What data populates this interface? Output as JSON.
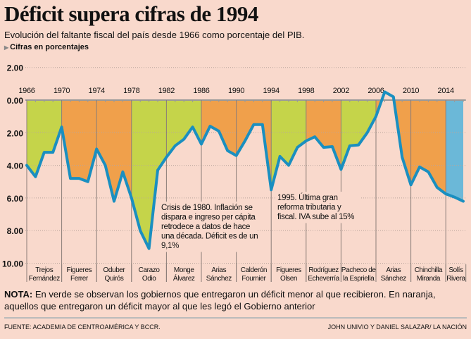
{
  "title": "Déficit supera cifras de 1994",
  "subtitle": "Evolución del faltante fiscal del país desde 1966 como porcentaje del PIB.",
  "units_label": "Cifras en porcentajes",
  "note_label": "NOTA:",
  "note_text": " En verde se observan los gobiernos que entregaron un déficit menor al que recibieron. En naranja, aquellos que entregaron un déficit mayor al que les legó el Gobierno anterior",
  "source": "FUENTE: ACADEMIA DE CENTROAMÉRICA Y BCCR.",
  "credit": "JOHN UNIVIO Y DANIEL SALAZAR/ LA NACIÓN",
  "colors": {
    "background": "#f9d9cc",
    "line": "#1a8fc0",
    "green": "#c5d44a",
    "orange": "#f0a04b",
    "blue": "#6bb8d8"
  },
  "chart_data": {
    "type": "line",
    "title": "Déficit supera cifras de 1994",
    "ylabel": "Cifras en porcentajes",
    "y_inverted": true,
    "ylim": [
      -2,
      10
    ],
    "y_ticks": [
      {
        "v": -2,
        "label": "2.00"
      },
      {
        "v": 0,
        "label": "0.00"
      },
      {
        "v": 2,
        "label": "2.00"
      },
      {
        "v": 4,
        "label": "4.00"
      },
      {
        "v": 6,
        "label": "6.00"
      },
      {
        "v": 8,
        "label": "8.00"
      },
      {
        "v": 10,
        "label": "10.00"
      }
    ],
    "x_ticks": [
      "1966",
      "1970",
      "1974",
      "1978",
      "1982",
      "1986",
      "1990",
      "1994",
      "1998",
      "2002",
      "2006",
      "2010",
      "2014"
    ],
    "grid": true,
    "x": [
      1966,
      1967,
      1968,
      1969,
      1970,
      1971,
      1972,
      1973,
      1974,
      1975,
      1976,
      1977,
      1978,
      1979,
      1980,
      1981,
      1982,
      1983,
      1984,
      1985,
      1986,
      1987,
      1988,
      1989,
      1990,
      1991,
      1992,
      1993,
      1994,
      1995,
      1996,
      1997,
      1998,
      1999,
      2000,
      2001,
      2002,
      2003,
      2004,
      2005,
      2006,
      2007,
      2008,
      2009,
      2010,
      2011,
      2012,
      2013,
      2014,
      2015,
      2016
    ],
    "values": [
      4.0,
      4.7,
      3.2,
      3.2,
      1.65,
      4.8,
      4.8,
      5.0,
      3.0,
      4.0,
      6.2,
      4.4,
      6.0,
      8.0,
      9.1,
      4.3,
      3.5,
      2.8,
      2.4,
      1.65,
      2.7,
      1.6,
      1.9,
      3.1,
      3.4,
      2.5,
      1.5,
      1.5,
      5.5,
      3.45,
      4.0,
      2.9,
      2.5,
      2.25,
      2.9,
      2.85,
      4.25,
      2.8,
      2.75,
      2.0,
      1.0,
      -0.5,
      -0.2,
      3.5,
      5.2,
      4.1,
      4.4,
      5.35,
      5.75,
      5.95,
      6.2
    ],
    "governments": [
      {
        "start": 1966,
        "end": 1970,
        "name1": "Trejos",
        "name2": "Fernández",
        "color": "green"
      },
      {
        "start": 1970,
        "end": 1974,
        "name1": "Figueres",
        "name2": "Ferrer",
        "color": "orange"
      },
      {
        "start": 1974,
        "end": 1978,
        "name1": "Oduber",
        "name2": "Quirós",
        "color": "orange"
      },
      {
        "start": 1978,
        "end": 1982,
        "name1": "Carazo",
        "name2": "Odio",
        "color": "green"
      },
      {
        "start": 1982,
        "end": 1986,
        "name1": "Monge",
        "name2": "Álvarez",
        "color": "green"
      },
      {
        "start": 1986,
        "end": 1990,
        "name1": "Arias",
        "name2": "Sánchez",
        "color": "orange"
      },
      {
        "start": 1990,
        "end": 1994,
        "name1": "Calderón",
        "name2": "Fournier",
        "color": "orange"
      },
      {
        "start": 1994,
        "end": 1998,
        "name1": "Figueres",
        "name2": "Olsen",
        "color": "green"
      },
      {
        "start": 1998,
        "end": 2002,
        "name1": "Rodríguez",
        "name2": "Echeverría",
        "color": "orange"
      },
      {
        "start": 2002,
        "end": 2006,
        "name1": "Pacheco de",
        "name2": "la Espriella",
        "color": "green"
      },
      {
        "start": 2006,
        "end": 2010,
        "name1": "Arias",
        "name2": "Sánchez",
        "color": "orange"
      },
      {
        "start": 2010,
        "end": 2014,
        "name1": "Chinchilla",
        "name2": "Miranda",
        "color": "orange"
      },
      {
        "start": 2014,
        "end": 2016.3,
        "name1": "Solís",
        "name2": "Rivera",
        "color": "blue"
      }
    ],
    "annotations": [
      {
        "year": 1980,
        "lines": [
          "Crisis de 1980. Inflación se",
          "dispara e ingreso per cápita",
          "retrodece a datos de hace",
          "una década. Déficit es de un",
          "9,1%"
        ]
      },
      {
        "year": 1995,
        "lines": [
          "1995. Última gran",
          "reforma tributaria y",
          "fiscal. IVA sube al 15%"
        ]
      }
    ]
  }
}
